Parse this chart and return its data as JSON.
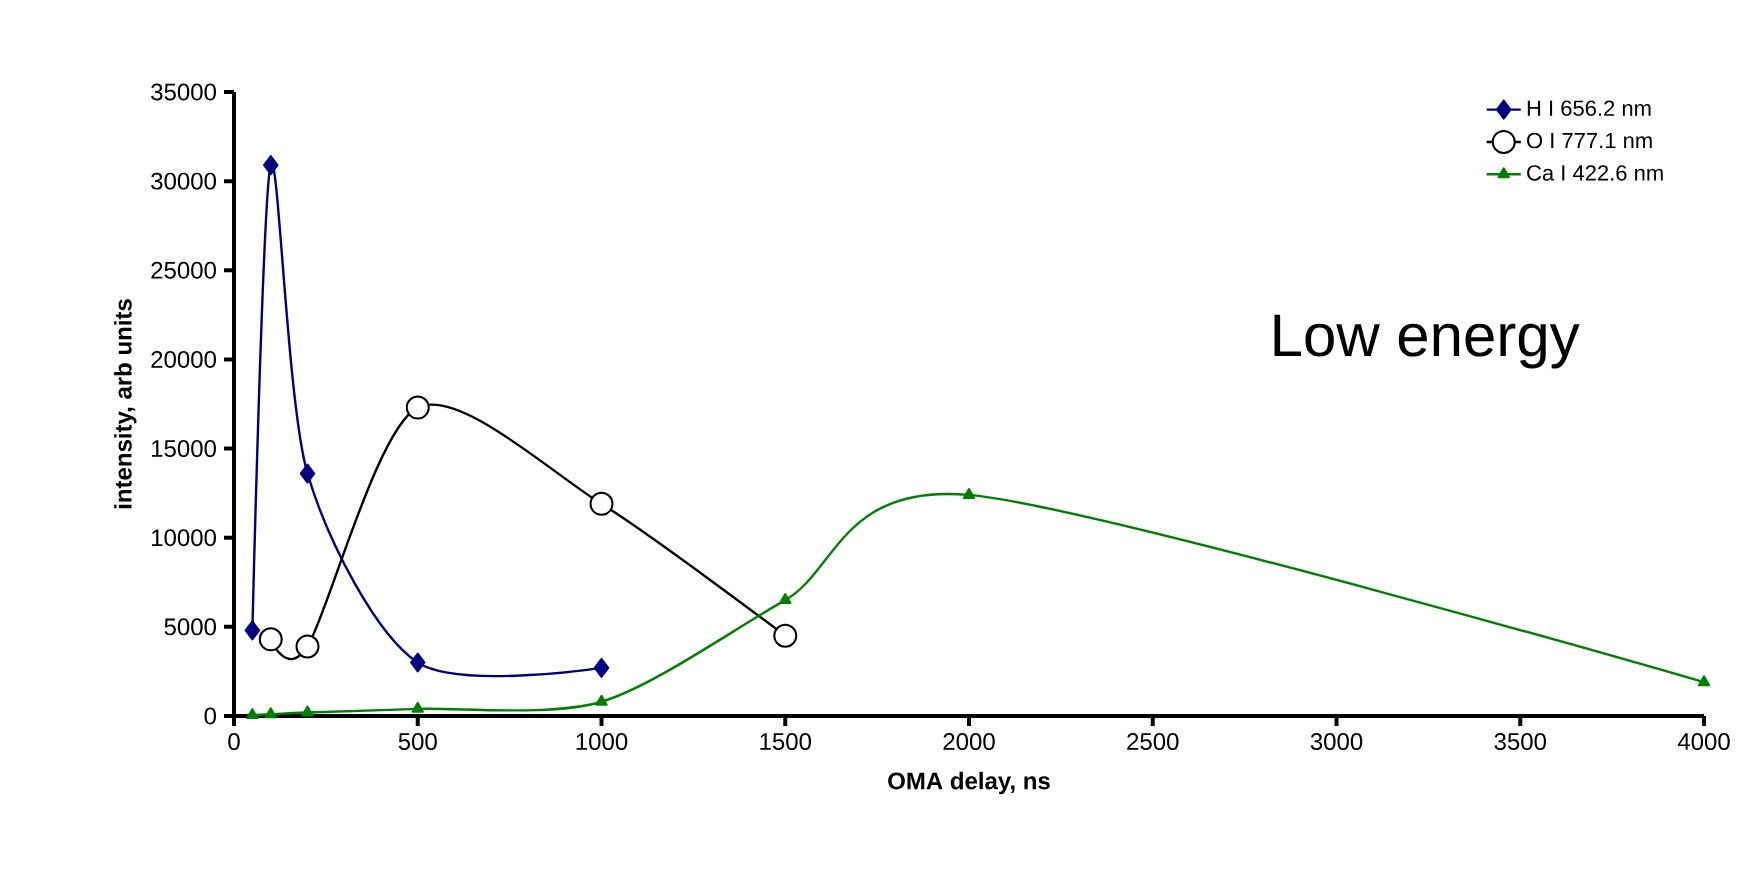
{
  "chart_data": {
    "type": "line",
    "xlabel": "OMA delay, ns",
    "ylabel": "intensity, arb units",
    "xlim": [
      0,
      4000
    ],
    "xticks": [
      0,
      500,
      1000,
      1500,
      2000,
      2500,
      3000,
      3500,
      4000
    ],
    "ylim": [
      0,
      35000
    ],
    "yticks": [
      0,
      5000,
      10000,
      15000,
      20000,
      25000,
      30000,
      35000
    ],
    "legend": "top right",
    "grid": false,
    "annotations": [
      "Low energy"
    ],
    "series": [
      {
        "name": "H I 656.2 nm",
        "color": "#000080",
        "marker": "diamond",
        "x": [
          50,
          100,
          200,
          500,
          1000
        ],
        "values": [
          4800,
          30900,
          13600,
          3000,
          2700
        ]
      },
      {
        "name": "O I 777.1 nm",
        "color": "#000000",
        "marker": "circle",
        "x": [
          100,
          200,
          500,
          1000,
          1500
        ],
        "values": [
          4300,
          3900,
          17300,
          11900,
          4500
        ]
      },
      {
        "name": "Ca I 422.6 nm",
        "color": "#008000",
        "marker": "triangle",
        "x": [
          50,
          100,
          200,
          500,
          1000,
          1500,
          2000,
          4000
        ],
        "values": [
          50,
          100,
          200,
          400,
          800,
          6500,
          12400,
          1900
        ]
      }
    ]
  }
}
